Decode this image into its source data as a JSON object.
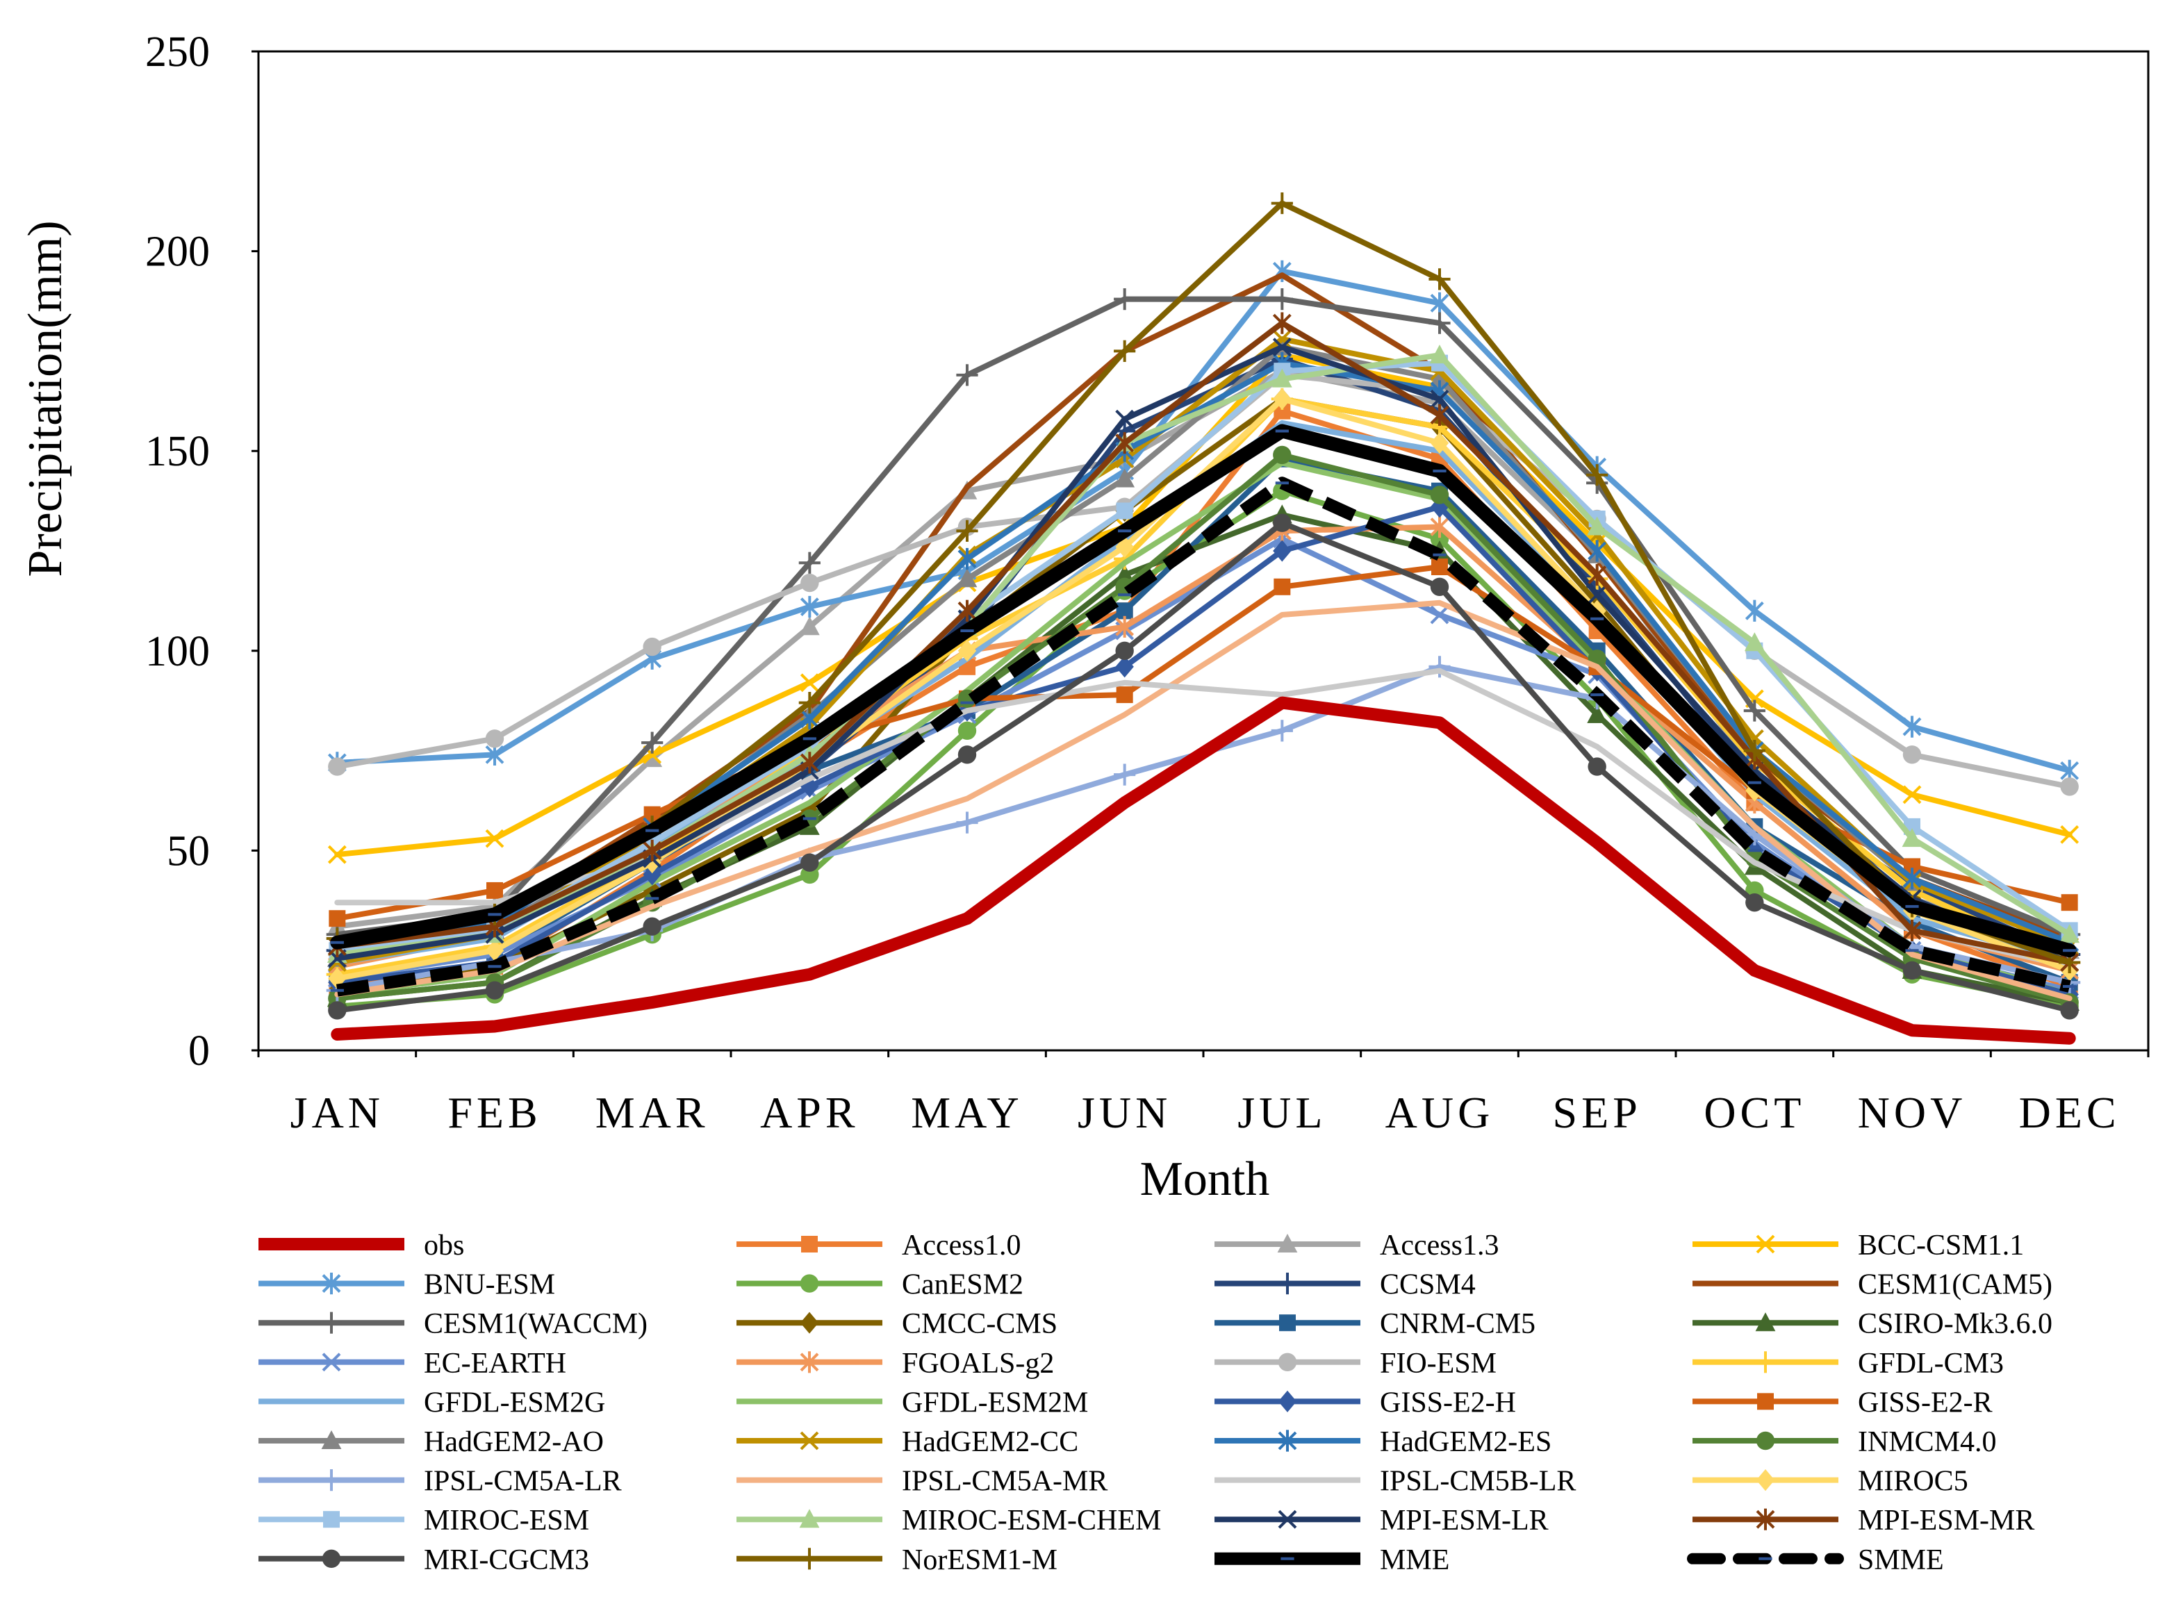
{
  "chart_data": {
    "type": "line",
    "title": "",
    "xlabel": "Month",
    "ylabel": "Precipitation(mm)",
    "ylim": [
      0,
      250
    ],
    "yticks": [
      "0",
      "50",
      "100",
      "150",
      "200",
      "250"
    ],
    "categories": [
      "JAN",
      "FEB",
      "MAR",
      "APR",
      "MAY",
      "JUN",
      "JUL",
      "AUG",
      "SEP",
      "OCT",
      "NOV",
      "DEC"
    ],
    "legend_position": "bottom",
    "series": [
      {
        "name": "obs",
        "color": "#c00000",
        "marker": "none",
        "style": "thick",
        "values": [
          4,
          6,
          12,
          19,
          33,
          62,
          87,
          82,
          52,
          20,
          5,
          3
        ]
      },
      {
        "name": "Access1.0",
        "color": "#ed7d31",
        "marker": "square",
        "values": [
          16,
          21,
          45,
          72,
          96,
          110,
          160,
          148,
          105,
          62,
          30,
          16
        ]
      },
      {
        "name": "Access1.3",
        "color": "#a5a5a5",
        "marker": "triangle",
        "values": [
          31,
          36,
          73,
          106,
          140,
          148,
          170,
          162,
          124,
          70,
          38,
          25
        ]
      },
      {
        "name": "BCC-CSM1.1",
        "color": "#ffc000",
        "marker": "x",
        "values": [
          49,
          53,
          74,
          92,
          117,
          131,
          174,
          166,
          127,
          88,
          64,
          54
        ]
      },
      {
        "name": "BNU-ESM",
        "color": "#5b9bd5",
        "marker": "star",
        "values": [
          72,
          74,
          98,
          111,
          120,
          145,
          195,
          187,
          146,
          110,
          81,
          70
        ]
      },
      {
        "name": "CanESM2",
        "color": "#70ad47",
        "marker": "circle",
        "values": [
          11,
          14,
          29,
          44,
          80,
          115,
          140,
          128,
          88,
          40,
          19,
          11
        ]
      },
      {
        "name": "CCSM4",
        "color": "#264478",
        "marker": "plus",
        "values": [
          25,
          31,
          52,
          70,
          104,
          155,
          173,
          160,
          116,
          68,
          41,
          24
        ]
      },
      {
        "name": "CESM1(CAM5)",
        "color": "#9e480e",
        "marker": "none",
        "values": [
          27,
          33,
          58,
          85,
          141,
          175,
          194,
          170,
          123,
          73,
          43,
          28
        ]
      },
      {
        "name": "CESM1(WACCM)",
        "color": "#636363",
        "marker": "plus",
        "values": [
          29,
          34,
          77,
          122,
          169,
          188,
          188,
          182,
          142,
          85,
          45,
          29
        ]
      },
      {
        "name": "CMCC-CMS",
        "color": "#806000",
        "marker": "diamond",
        "values": [
          15,
          21,
          40,
          60,
          105,
          135,
          163,
          156,
          112,
          64,
          38,
          20
        ]
      },
      {
        "name": "CNRM-CM5",
        "color": "#255e91",
        "marker": "square",
        "values": [
          19,
          24,
          47,
          70,
          85,
          110,
          148,
          140,
          100,
          56,
          32,
          17
        ]
      },
      {
        "name": "CSIRO-Mk3.6.0",
        "color": "#43682b",
        "marker": "triangle",
        "values": [
          13,
          17,
          38,
          56,
          88,
          119,
          134,
          125,
          84,
          46,
          20,
          12
        ]
      },
      {
        "name": "EC-EARTH",
        "color": "#698ed0",
        "marker": "x",
        "values": [
          18,
          24,
          43,
          65,
          84,
          105,
          128,
          109,
          94,
          52,
          25,
          15
        ]
      },
      {
        "name": "FGOALS-g2",
        "color": "#f1975a",
        "marker": "star",
        "values": [
          21,
          29,
          50,
          75,
          100,
          106,
          130,
          131,
          96,
          62,
          30,
          20
        ]
      },
      {
        "name": "FIO-ESM",
        "color": "#b7b7b7",
        "marker": "circle",
        "values": [
          71,
          78,
          101,
          117,
          131,
          136,
          169,
          165,
          133,
          100,
          74,
          66
        ]
      },
      {
        "name": "GFDL-CM3",
        "color": "#ffcd33",
        "marker": "plus",
        "values": [
          19,
          26,
          48,
          75,
          103,
          123,
          163,
          156,
          118,
          72,
          40,
          22
        ]
      },
      {
        "name": "GFDL-ESM2G",
        "color": "#7cafdd",
        "marker": "none",
        "values": [
          22,
          28,
          51,
          73,
          98,
          128,
          157,
          150,
          110,
          64,
          33,
          22
        ]
      },
      {
        "name": "GFDL-ESM2M",
        "color": "#8cc168",
        "marker": "none",
        "values": [
          14,
          19,
          42,
          62,
          90,
          122,
          147,
          138,
          97,
          56,
          26,
          14
        ]
      },
      {
        "name": "GISS-E2-H",
        "color": "#335aa1",
        "marker": "diamond",
        "values": [
          17,
          22,
          44,
          66,
          85,
          96,
          125,
          136,
          95,
          50,
          25,
          14
        ]
      },
      {
        "name": "GISS-E2-R",
        "color": "#d26012",
        "marker": "square",
        "values": [
          33,
          40,
          59,
          77,
          88,
          89,
          116,
          121,
          96,
          65,
          46,
          37
        ]
      },
      {
        "name": "HadGEM2-AO",
        "color": "#848484",
        "marker": "triangle",
        "values": [
          23,
          30,
          55,
          84,
          118,
          143,
          176,
          168,
          124,
          75,
          42,
          26
        ]
      },
      {
        "name": "HadGEM2-CC",
        "color": "#bf9000",
        "marker": "x",
        "values": [
          22,
          29,
          54,
          81,
          124,
          148,
          178,
          170,
          129,
          78,
          42,
          26
        ]
      },
      {
        "name": "HadGEM2-ES",
        "color": "#2e75b6",
        "marker": "star",
        "values": [
          26,
          32,
          56,
          83,
          123,
          150,
          172,
          165,
          125,
          75,
          43,
          27
        ]
      },
      {
        "name": "INMCM4.0",
        "color": "#548235",
        "marker": "circle",
        "values": [
          13,
          17,
          37,
          58,
          88,
          116,
          149,
          139,
          98,
          48,
          23,
          12
        ]
      },
      {
        "name": "IPSL-CM5A-LR",
        "color": "#8faadc",
        "marker": "plus",
        "values": [
          15,
          22,
          30,
          48,
          57,
          69,
          80,
          96,
          88,
          54,
          26,
          17
        ]
      },
      {
        "name": "IPSL-CM5A-MR",
        "color": "#f4b183",
        "marker": "none",
        "values": [
          14,
          20,
          36,
          50,
          63,
          84,
          109,
          112,
          96,
          56,
          24,
          13
        ]
      },
      {
        "name": "IPSL-CM5B-LR",
        "color": "#c9c9c9",
        "marker": "none",
        "values": [
          37,
          37,
          48,
          68,
          85,
          92,
          89,
          95,
          76,
          47,
          30,
          21
        ]
      },
      {
        "name": "MIROC5",
        "color": "#ffd966",
        "marker": "diamond",
        "values": [
          18,
          25,
          47,
          72,
          100,
          126,
          163,
          152,
          110,
          65,
          35,
          20
        ]
      },
      {
        "name": "MIROC-ESM",
        "color": "#9dc3e6",
        "marker": "square",
        "values": [
          25,
          30,
          52,
          76,
          108,
          135,
          170,
          172,
          133,
          100,
          56,
          30
        ]
      },
      {
        "name": "MIROC-ESM-CHEM",
        "color": "#a9d18e",
        "marker": "triangle",
        "values": [
          24,
          29,
          50,
          74,
          106,
          152,
          168,
          174,
          131,
          102,
          53,
          29
        ]
      },
      {
        "name": "MPI-ESM-LR",
        "color": "#203864",
        "marker": "x",
        "values": [
          23,
          29,
          48,
          70,
          108,
          158,
          176,
          163,
          114,
          70,
          38,
          22
        ]
      },
      {
        "name": "MPI-ESM-MR",
        "color": "#843c0c",
        "marker": "star",
        "values": [
          26,
          31,
          50,
          72,
          110,
          152,
          182,
          159,
          119,
          73,
          30,
          22
        ]
      },
      {
        "name": "MRI-CGCM3",
        "color": "#4b4b4b",
        "marker": "circle",
        "values": [
          10,
          15,
          31,
          47,
          74,
          100,
          132,
          116,
          71,
          37,
          20,
          10
        ]
      },
      {
        "name": "NorESM1-M",
        "color": "#7f6000",
        "marker": "plus",
        "values": [
          28,
          34,
          56,
          87,
          130,
          175,
          212,
          193,
          144,
          75,
          36,
          22
        ]
      },
      {
        "name": "MME",
        "color": "#000000",
        "marker": "dash",
        "style": "thick",
        "values": [
          27,
          34,
          55,
          78,
          105,
          130,
          155,
          145,
          108,
          67,
          36,
          25
        ]
      },
      {
        "name": "SMME",
        "color": "#000000",
        "marker": "dash",
        "style": "dashed",
        "values": [
          15,
          21,
          38,
          58,
          87,
          114,
          142,
          124,
          89,
          50,
          25,
          16
        ]
      }
    ]
  }
}
